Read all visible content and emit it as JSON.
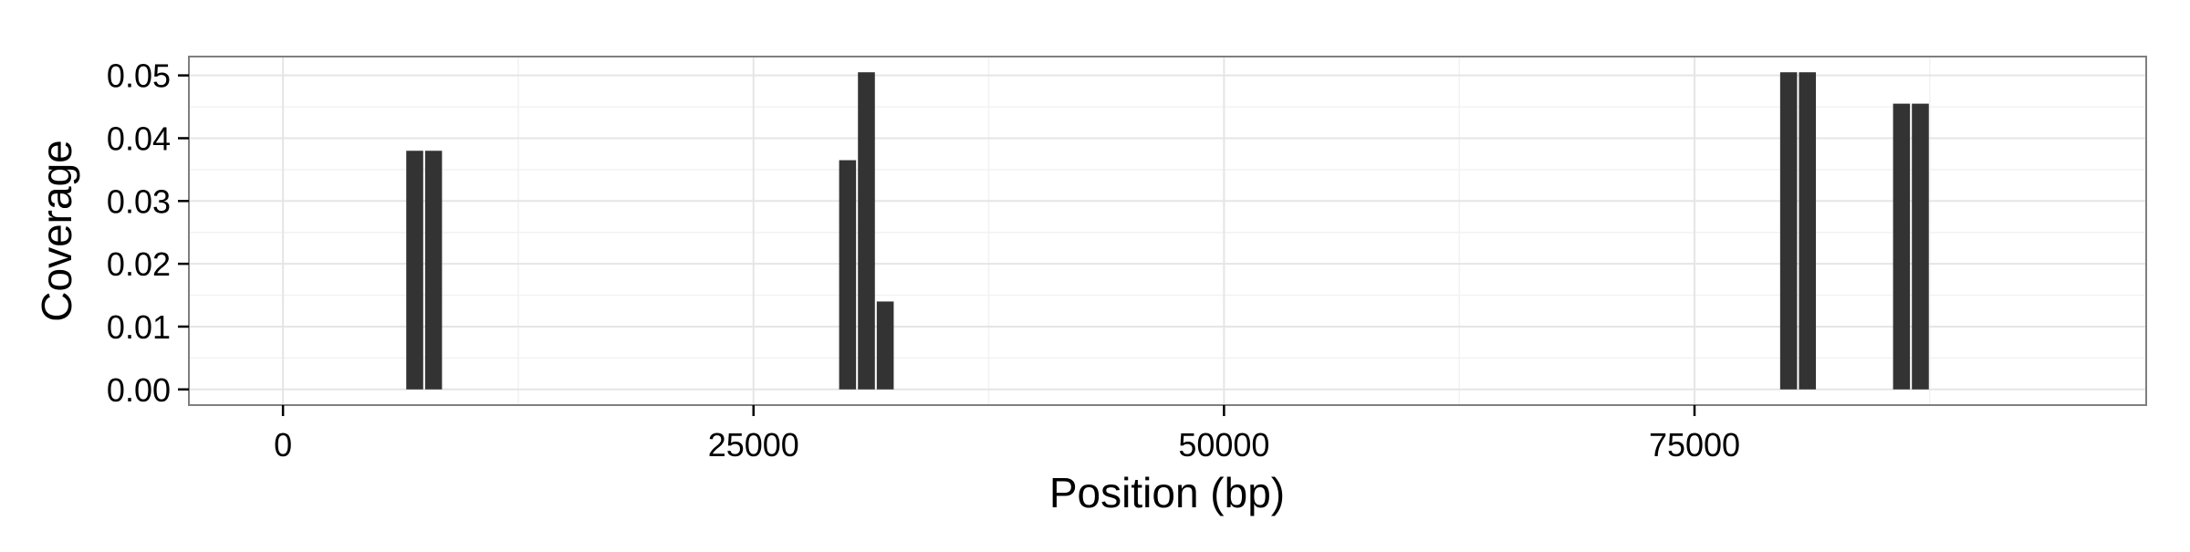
{
  "chart_data": {
    "type": "bar",
    "title": "",
    "xlabel": "Position (bp)",
    "ylabel": "Coverage",
    "xlim": [
      -5000,
      99000
    ],
    "ylim": [
      -0.0025,
      0.053
    ],
    "x_ticks": [
      0,
      25000,
      50000,
      75000
    ],
    "x_tick_labels": [
      "0",
      "25000",
      "50000",
      "75000"
    ],
    "y_ticks": [
      0,
      0.01,
      0.02,
      0.03,
      0.04,
      0.05
    ],
    "y_tick_labels": [
      "0.00",
      "0.01",
      "0.02",
      "0.03",
      "0.04",
      "0.05"
    ],
    "grid": true,
    "bar_width": 900,
    "bar_color": "#333333",
    "x": [
      7000,
      8000,
      30000,
      31000,
      32000,
      80000,
      81000,
      86000,
      87000
    ],
    "values": [
      0.038,
      0.038,
      0.0365,
      0.0505,
      0.014,
      0.0505,
      0.0505,
      0.0455,
      0.0455
    ]
  }
}
